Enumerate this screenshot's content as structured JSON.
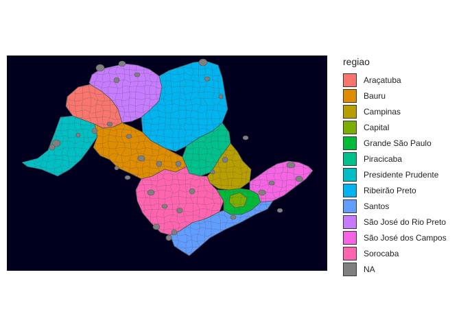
{
  "chart_data": {
    "type": "choropleth-map",
    "legend": {
      "title": "regiao",
      "placement": "right",
      "entries": [
        {
          "label": "Araçatuba",
          "color": "#F8766D"
        },
        {
          "label": "Bauru",
          "color": "#DE8C00"
        },
        {
          "label": "Campinas",
          "color": "#B79F00"
        },
        {
          "label": "Capital",
          "color": "#7CAE00"
        },
        {
          "label": "Grande São Paulo",
          "color": "#00BA38"
        },
        {
          "label": "Piracicaba",
          "color": "#00C08B"
        },
        {
          "label": "Presidente Prudente",
          "color": "#00BFC4"
        },
        {
          "label": "Ribeirão Preto",
          "color": "#00B4F0"
        },
        {
          "label": "Santos",
          "color": "#619CFF"
        },
        {
          "label": "São José do Rio Preto",
          "color": "#C77CFF"
        },
        {
          "label": "São José dos Campos",
          "color": "#F564E3"
        },
        {
          "label": "Sorocaba",
          "color": "#FF64B0"
        },
        {
          "label": "NA",
          "color": "#7F7F7F"
        }
      ]
    },
    "panel_background": "#00001E",
    "border_color": "#555555"
  }
}
